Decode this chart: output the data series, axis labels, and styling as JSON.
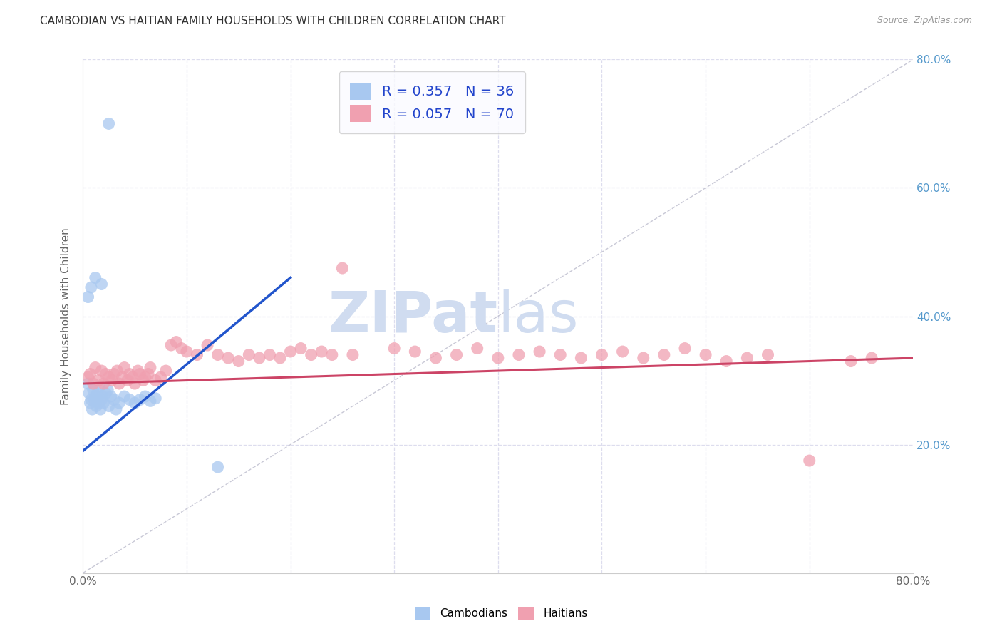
{
  "title": "CAMBODIAN VS HAITIAN FAMILY HOUSEHOLDS WITH CHILDREN CORRELATION CHART",
  "source": "Source: ZipAtlas.com",
  "ylabel": "Family Households with Children",
  "xlim": [
    0,
    0.8
  ],
  "ylim": [
    0,
    0.8
  ],
  "legend_cambodian_label": "R = 0.357   N = 36",
  "legend_haitian_label": "R = 0.057   N = 70",
  "cambodian_color": "#A8C8F0",
  "haitian_color": "#F0A0B0",
  "cambodian_line_color": "#2255CC",
  "haitian_line_color": "#CC4466",
  "diagonal_line_color": "#BBBBCC",
  "background_color": "#FFFFFF",
  "grid_color": "#DDDDEE",
  "title_color": "#333333",
  "axis_label_color": "#666666",
  "right_tick_color": "#5599CC",
  "legend_text_color": "#2244CC",
  "watermark_text_color": "#D0DCF0",
  "legend_box_color": "#FAFBFF",
  "legend_border_color": "#CCCCCC",
  "cambodian_x": [
    0.005,
    0.006,
    0.007,
    0.008,
    0.009,
    0.01,
    0.011,
    0.012,
    0.013,
    0.014,
    0.015,
    0.016,
    0.017,
    0.018,
    0.019,
    0.02,
    0.022,
    0.024,
    0.025,
    0.027,
    0.03,
    0.032,
    0.035,
    0.04,
    0.045,
    0.05,
    0.055,
    0.06,
    0.065,
    0.07,
    0.005,
    0.008,
    0.012,
    0.018,
    0.025,
    0.13
  ],
  "cambodian_y": [
    0.295,
    0.28,
    0.265,
    0.27,
    0.255,
    0.285,
    0.27,
    0.275,
    0.26,
    0.28,
    0.265,
    0.29,
    0.255,
    0.27,
    0.275,
    0.265,
    0.28,
    0.285,
    0.26,
    0.275,
    0.27,
    0.255,
    0.265,
    0.275,
    0.27,
    0.265,
    0.27,
    0.275,
    0.268,
    0.272,
    0.43,
    0.445,
    0.46,
    0.45,
    0.7,
    0.165
  ],
  "haitian_x": [
    0.005,
    0.007,
    0.01,
    0.012,
    0.015,
    0.018,
    0.02,
    0.022,
    0.025,
    0.028,
    0.03,
    0.033,
    0.035,
    0.038,
    0.04,
    0.043,
    0.045,
    0.048,
    0.05,
    0.053,
    0.055,
    0.058,
    0.06,
    0.063,
    0.065,
    0.07,
    0.075,
    0.08,
    0.085,
    0.09,
    0.095,
    0.1,
    0.11,
    0.12,
    0.13,
    0.14,
    0.15,
    0.16,
    0.17,
    0.18,
    0.19,
    0.2,
    0.21,
    0.22,
    0.23,
    0.24,
    0.25,
    0.26,
    0.3,
    0.32,
    0.34,
    0.36,
    0.38,
    0.4,
    0.42,
    0.44,
    0.46,
    0.48,
    0.5,
    0.52,
    0.54,
    0.56,
    0.58,
    0.6,
    0.62,
    0.64,
    0.66,
    0.7,
    0.74,
    0.76
  ],
  "haitian_y": [
    0.305,
    0.31,
    0.295,
    0.32,
    0.3,
    0.315,
    0.295,
    0.31,
    0.305,
    0.3,
    0.31,
    0.315,
    0.295,
    0.305,
    0.32,
    0.3,
    0.31,
    0.305,
    0.295,
    0.315,
    0.31,
    0.3,
    0.305,
    0.31,
    0.32,
    0.3,
    0.305,
    0.315,
    0.355,
    0.36,
    0.35,
    0.345,
    0.34,
    0.355,
    0.34,
    0.335,
    0.33,
    0.34,
    0.335,
    0.34,
    0.335,
    0.345,
    0.35,
    0.34,
    0.345,
    0.34,
    0.475,
    0.34,
    0.35,
    0.345,
    0.335,
    0.34,
    0.35,
    0.335,
    0.34,
    0.345,
    0.34,
    0.335,
    0.34,
    0.345,
    0.335,
    0.34,
    0.35,
    0.34,
    0.33,
    0.335,
    0.34,
    0.175,
    0.33,
    0.335
  ]
}
